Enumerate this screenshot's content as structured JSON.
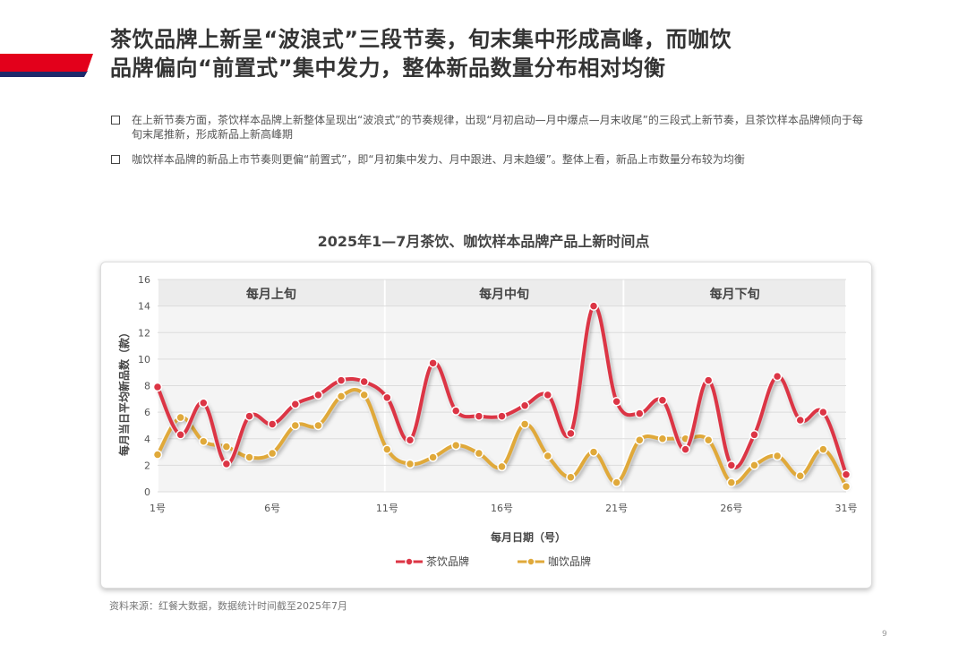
{
  "header": {
    "title_line1": "茶饮品牌上新呈“波浪式”三段节奏，旬末集中形成高峰，而咖饮",
    "title_line2": "品牌偏向“前置式”集中发力，整体新品数量分布相对均衡",
    "accent_color": "#e3001b",
    "accent_shadow_color": "#1f2a6b"
  },
  "bullets": [
    "在上新节奏方面，茶饮样本品牌上新整体呈现出“波浪式”的节奏规律，出现“月初启动—月中爆点—月末收尾”的三段式上新节奏，且茶饮样本品牌倾向于每旬末尾推新，形成新品上新高峰期",
    "咖饮样本品牌的新品上市节奏则更偏“前置式”，即“月初集中发力、月中跟进、月末趋缓”。整体上看，新品上市数量分布较为均衡"
  ],
  "chart_data": {
    "type": "line",
    "title": "2025年1—7月茶饮、咖饮样本品牌产品上新时间点",
    "xlabel": "每月日期（号）",
    "ylabel": "每月当日平均新品数（款）",
    "ylim": [
      0,
      16
    ],
    "yticks": [
      "0",
      "2",
      "4",
      "6",
      "8",
      "10",
      "12",
      "14",
      "16"
    ],
    "x": [
      1,
      2,
      3,
      4,
      5,
      6,
      7,
      8,
      9,
      10,
      11,
      12,
      13,
      14,
      15,
      16,
      17,
      18,
      19,
      20,
      21,
      22,
      23,
      24,
      25,
      26,
      27,
      28,
      29,
      30,
      31
    ],
    "xtick_labels": [
      {
        "day": 1,
        "label": "1号"
      },
      {
        "day": 6,
        "label": "6号"
      },
      {
        "day": 11,
        "label": "11号"
      },
      {
        "day": 16,
        "label": "16号"
      },
      {
        "day": 21,
        "label": "21号"
      },
      {
        "day": 26,
        "label": "26号"
      },
      {
        "day": 31,
        "label": "31号"
      }
    ],
    "bands": [
      {
        "label": "每月上旬",
        "from": 1,
        "to": 10.9
      },
      {
        "label": "每月中旬",
        "from": 10.9,
        "to": 21.3
      },
      {
        "label": "每月下旬",
        "from": 21.3,
        "to": 31
      }
    ],
    "grid": true,
    "legend": "bottom-center",
    "series": [
      {
        "name": "茶饮品牌",
        "color": "#dc3545",
        "values": [
          7.9,
          4.3,
          6.7,
          2.1,
          5.7,
          5.1,
          6.6,
          7.3,
          8.4,
          8.3,
          7.1,
          3.9,
          9.7,
          6.1,
          5.7,
          5.7,
          6.5,
          7.3,
          4.4,
          14.0,
          6.8,
          5.9,
          6.9,
          3.2,
          8.4,
          2.0,
          4.3,
          8.7,
          5.4,
          6.0,
          1.3
        ]
      },
      {
        "name": "咖饮品牌",
        "color": "#e0a93a",
        "values": [
          2.8,
          5.6,
          3.8,
          3.4,
          2.6,
          2.9,
          5.0,
          5.0,
          7.2,
          7.3,
          3.2,
          2.1,
          2.6,
          3.5,
          2.9,
          1.9,
          5.1,
          2.7,
          1.1,
          3.0,
          0.7,
          3.9,
          4.0,
          4.0,
          3.9,
          0.7,
          2.0,
          2.7,
          1.2,
          3.2,
          0.4
        ]
      }
    ]
  },
  "footer": {
    "source": "资料来源：红餐大数据，数据统计时间截至2025年7月",
    "page_number": "9"
  }
}
